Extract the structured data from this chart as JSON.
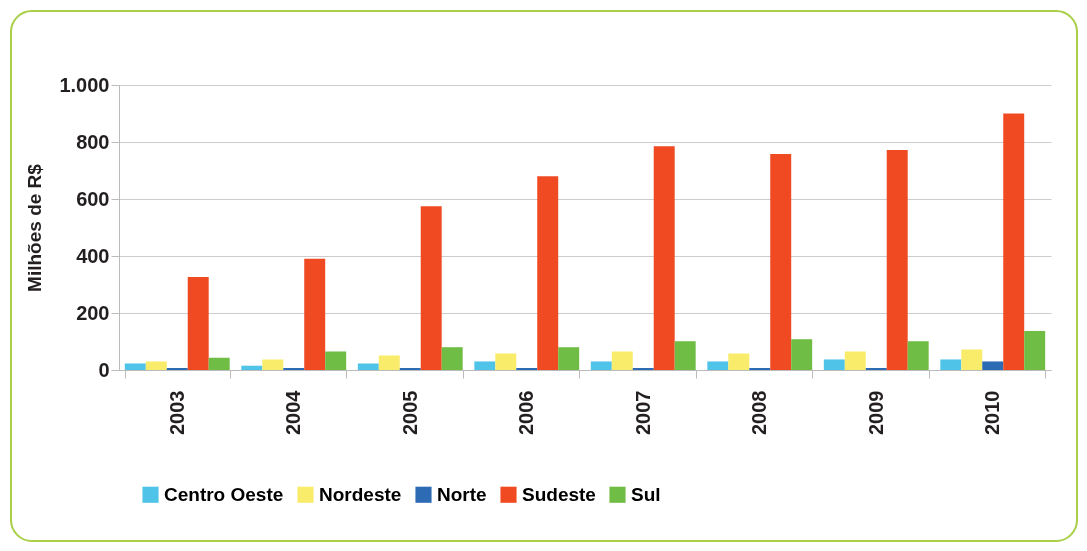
{
  "chart_data": {
    "type": "bar",
    "ylabel": "Milhões de R$",
    "categories": [
      "2003",
      "2004",
      "2005",
      "2006",
      "2007",
      "2008",
      "2009",
      "2010"
    ],
    "series": [
      {
        "name": "Centro Oeste",
        "color": "#4fc3e8",
        "values": [
          23,
          15,
          23,
          30,
          30,
          30,
          37,
          37
        ]
      },
      {
        "name": "Nordeste",
        "color": "#f9ec6b",
        "values": [
          30,
          37,
          51,
          58,
          65,
          58,
          65,
          72
        ]
      },
      {
        "name": "Norte",
        "color": "#2e6bb5",
        "values": [
          7,
          7,
          7,
          7,
          7,
          7,
          7,
          30
        ]
      },
      {
        "name": "Sudeste",
        "color": "#f04a23",
        "values": [
          326,
          390,
          575,
          680,
          785,
          758,
          772,
          900
        ]
      },
      {
        "name": "Sul",
        "color": "#6fbd44",
        "values": [
          43,
          65,
          80,
          80,
          101,
          108,
          101,
          137
        ]
      }
    ],
    "ylim": [
      0,
      1000
    ],
    "yticks": [
      0,
      200,
      400,
      600,
      800,
      {
        "value": 1000,
        "label": "1.000"
      }
    ],
    "grid": "y",
    "legend": "bottom"
  }
}
